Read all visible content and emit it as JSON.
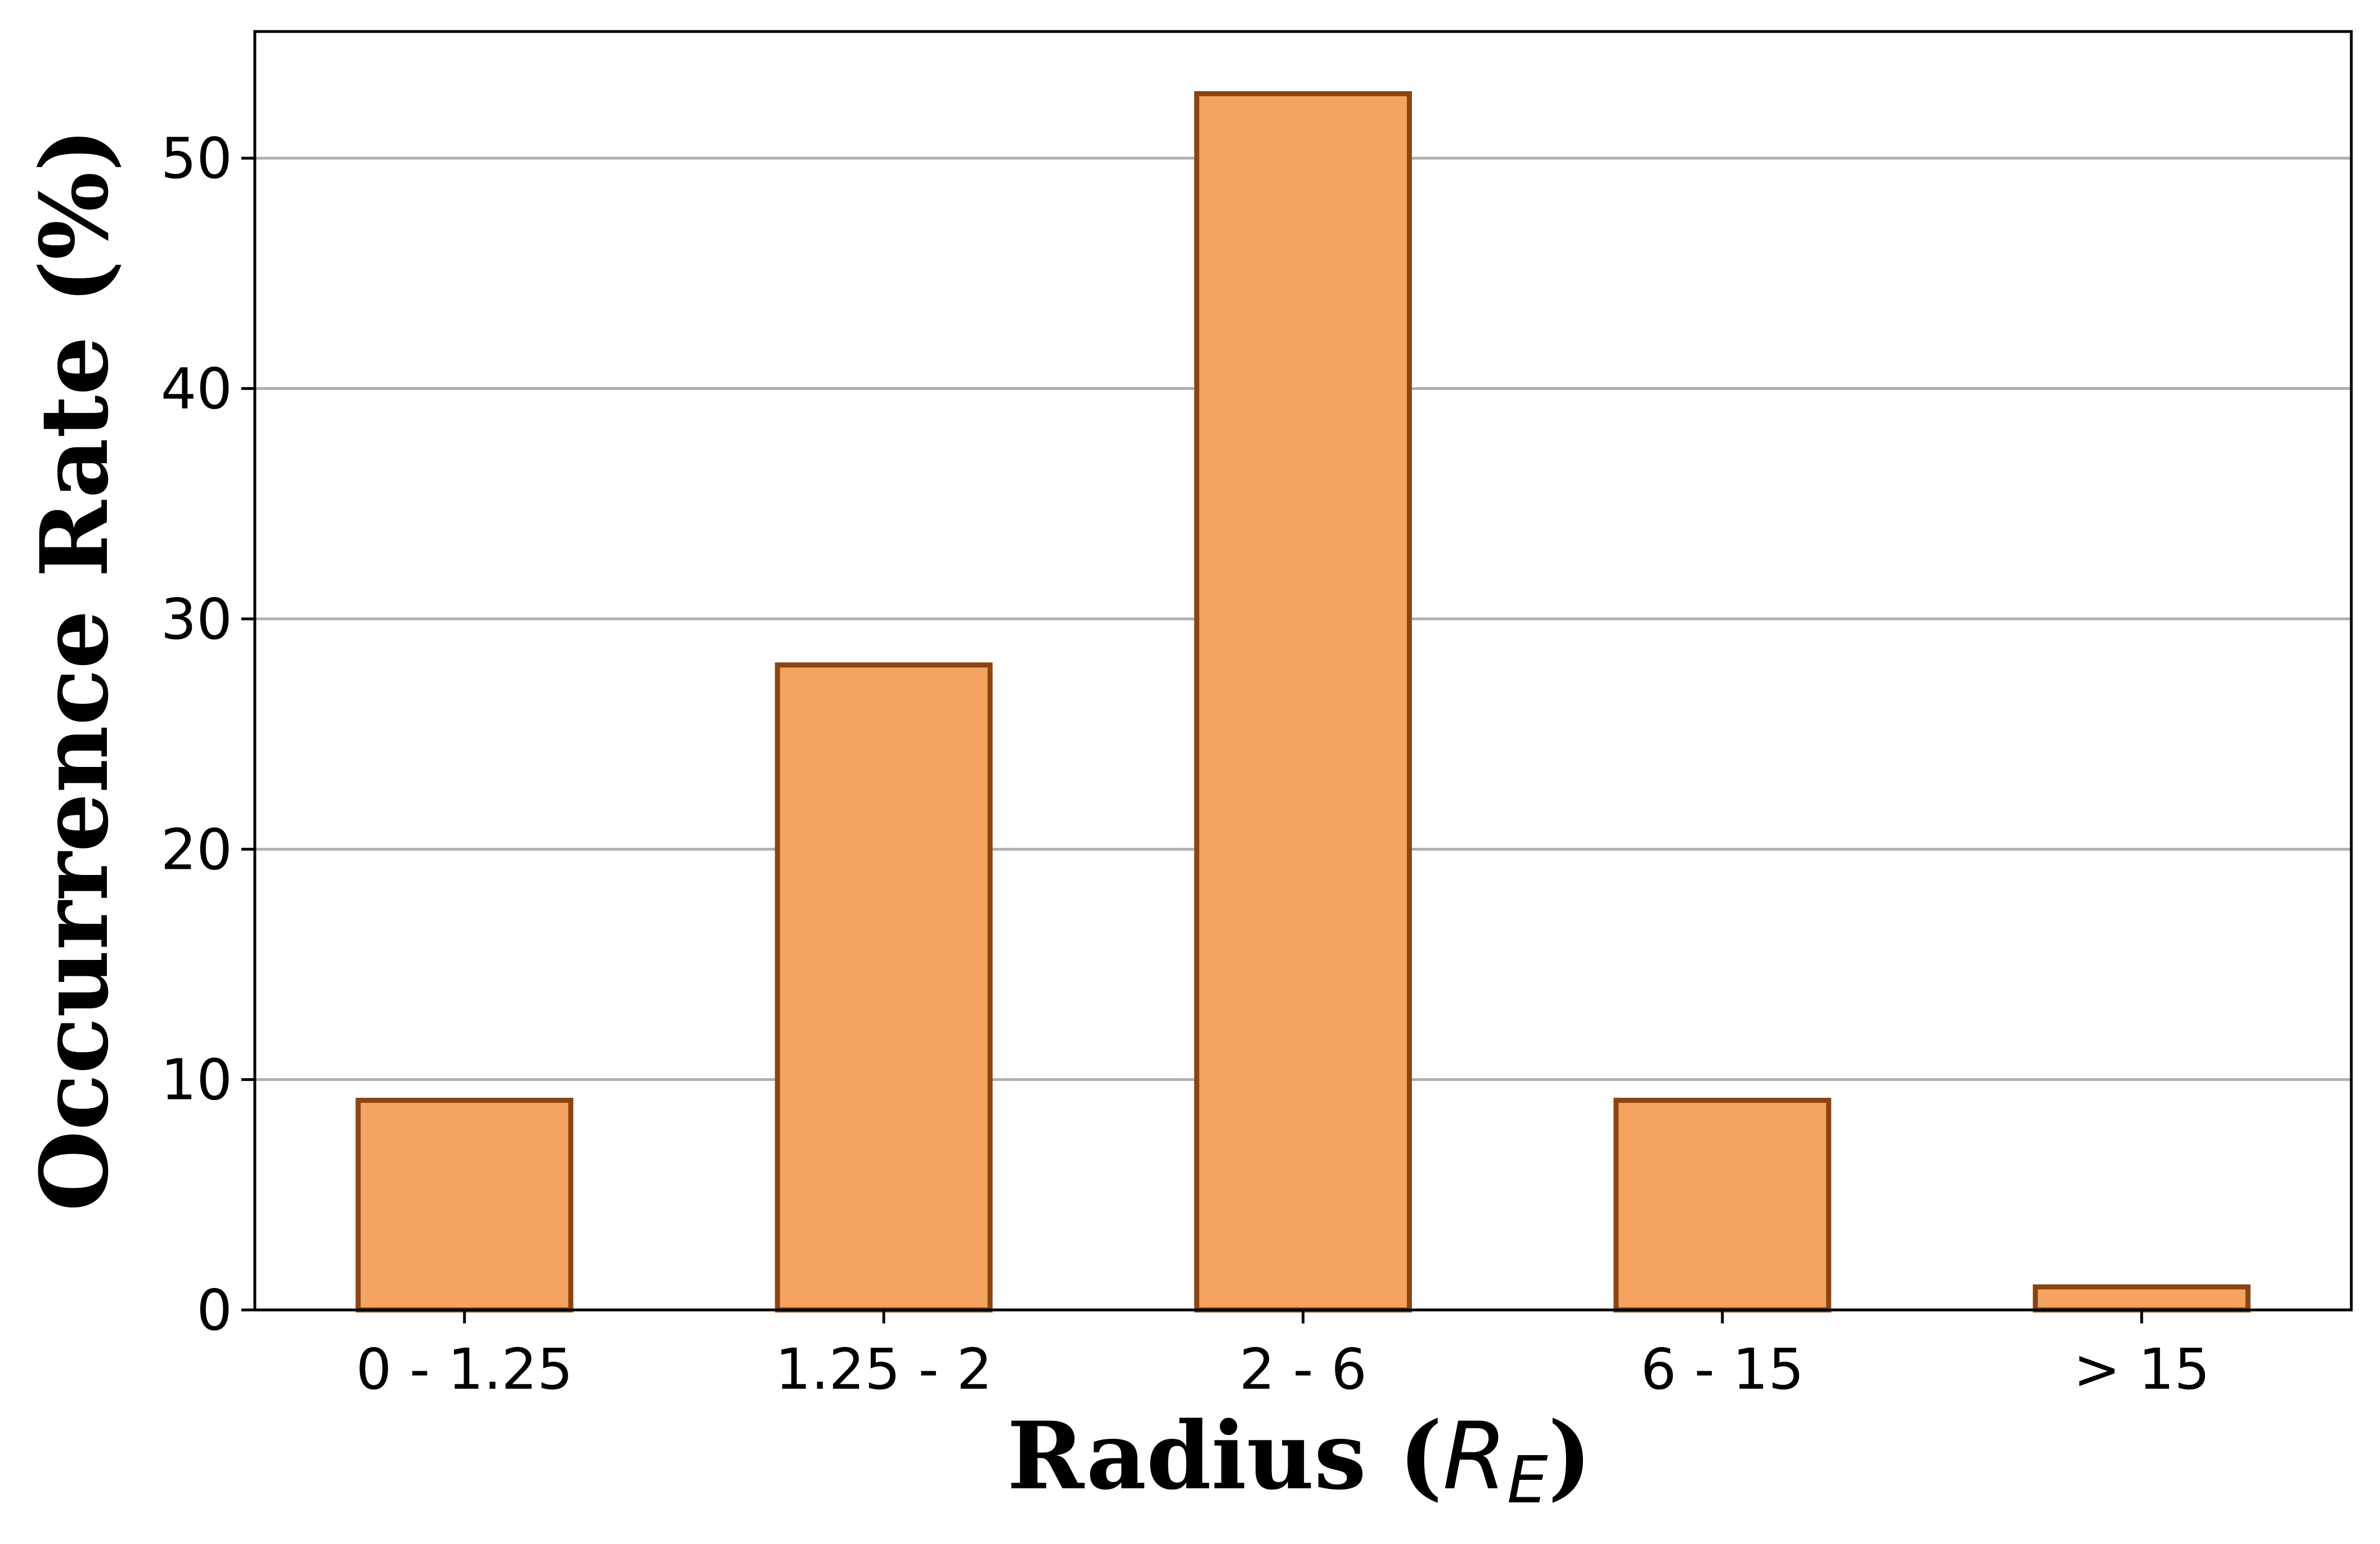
{
  "chart_data": {
    "type": "bar",
    "categories": [
      "0 - 1.25",
      "1.25 - 2",
      "2 - 6",
      "6 - 15",
      "> 15"
    ],
    "values": [
      9.1,
      28.0,
      52.8,
      9.1,
      1.0
    ],
    "xlabel": "Radius",
    "xlabel_unit_symbol": "R",
    "xlabel_unit_subscript": "E",
    "ylabel": "Occurrence Rate (%)",
    "ylim": [
      0,
      55.5
    ],
    "yticks": [
      "0",
      "10",
      "20",
      "30",
      "40",
      "50"
    ],
    "grid": "horizontal",
    "colors": {
      "bar_fill": "#F4A460",
      "bar_edge": "#8B4513",
      "grid": "#b0b0b0",
      "axes": "#000000"
    }
  }
}
